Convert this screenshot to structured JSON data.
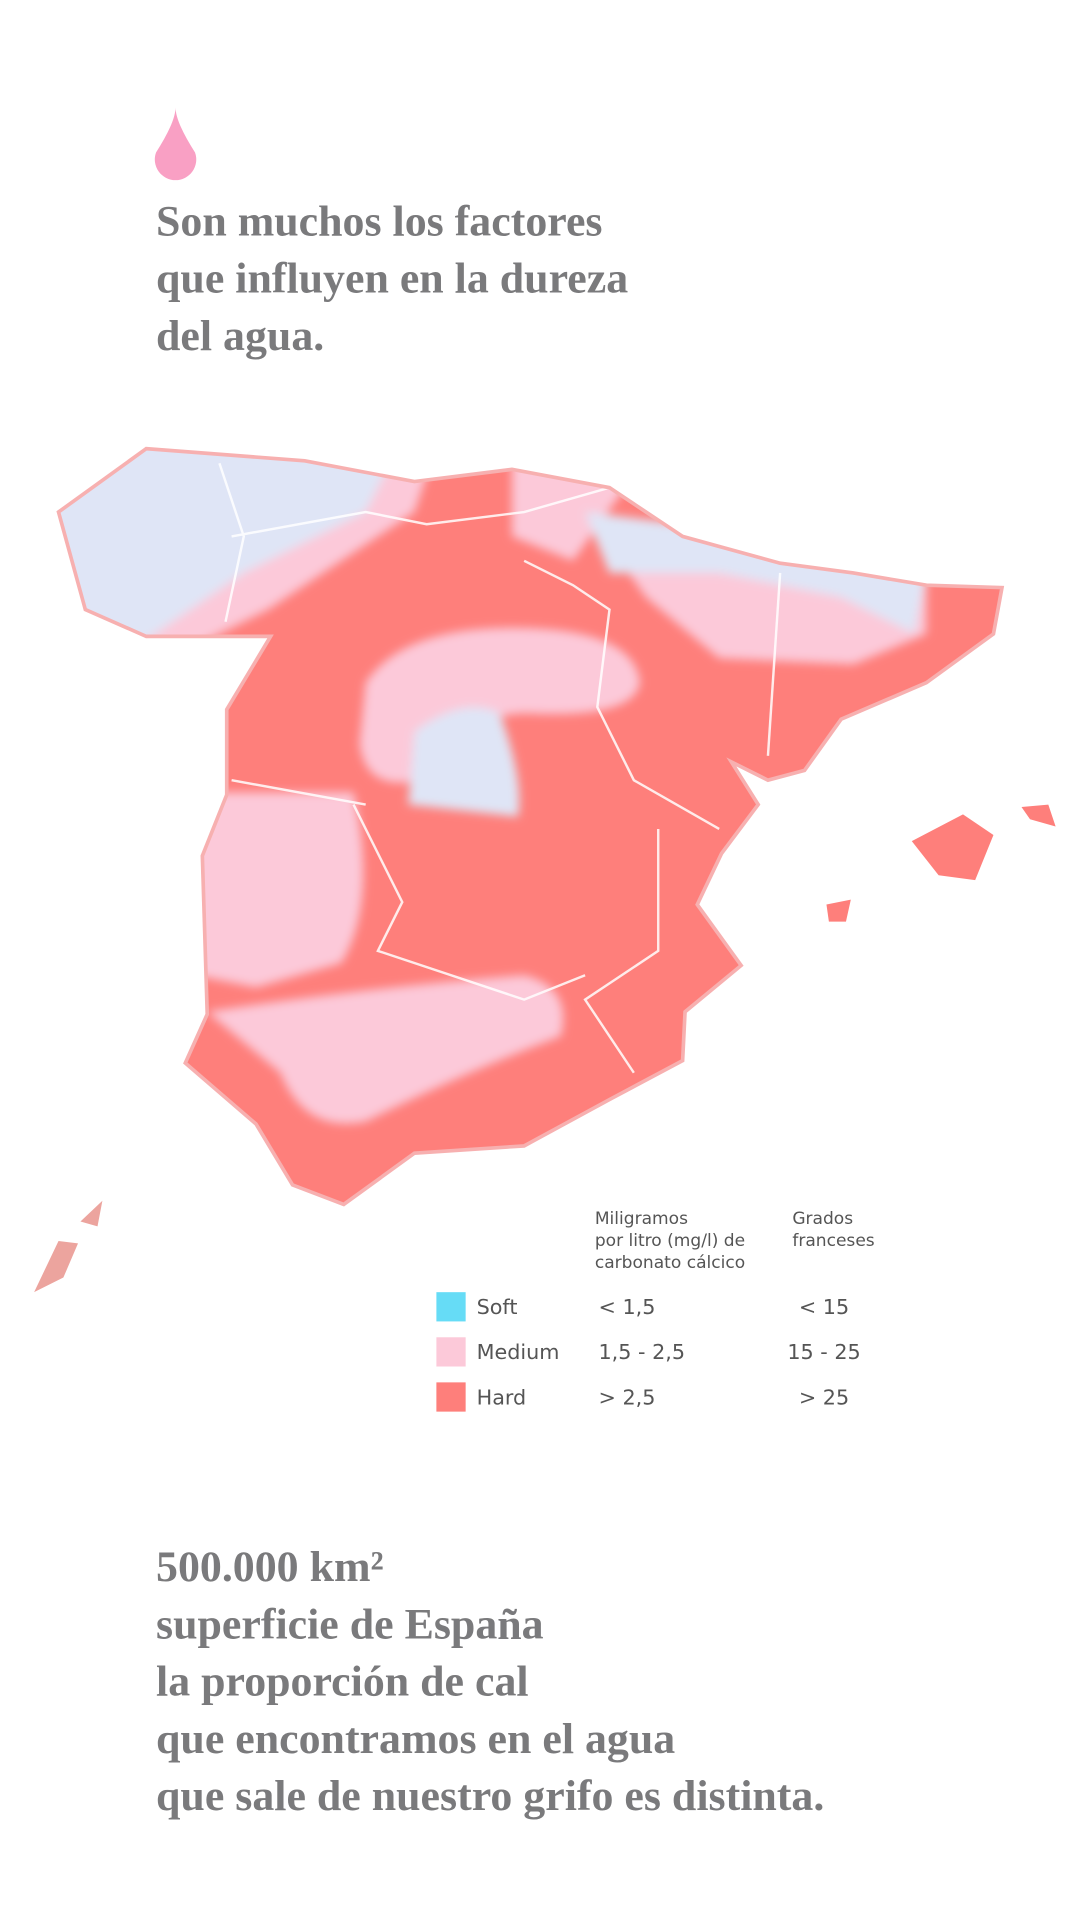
{
  "header": {
    "lines": [
      "Son muchos los factores",
      "que influyen en la dureza",
      "del agua."
    ]
  },
  "legend": {
    "headers": [
      [
        "Miligramos",
        "por litro (mg/l) de",
        "carbonato cálcico"
      ],
      [
        "Grados",
        "franceses"
      ]
    ],
    "rows": [
      {
        "name": "Soft",
        "color": "#66dcf6",
        "mg": "< 1,5",
        "grados": "< 15"
      },
      {
        "name": "Medium",
        "color": "#fcc9d9",
        "mg": "1,5 - 2,5",
        "grados": "15 - 25"
      },
      {
        "name": "Hard",
        "color": "#fe7f7b",
        "mg": "> 2,5",
        "grados": "> 25"
      }
    ]
  },
  "footer": {
    "lines": [
      "500.000 km²",
      "superficie de España",
      "la proporción de cal",
      "que encontramos en el agua",
      "que sale de nuestro grifo es distinta."
    ]
  }
}
